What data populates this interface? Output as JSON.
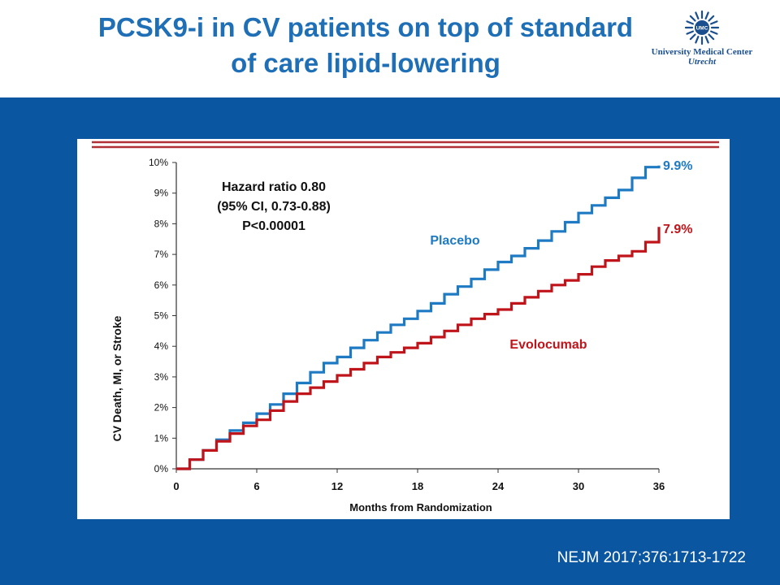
{
  "slide": {
    "title_line1": "PCSK9-i in CV patients on top of standard",
    "title_line2": "of care lipid-lowering",
    "citation": "NEJM 2017;376:1713-1722"
  },
  "logo": {
    "emblem_text": "UMC",
    "name": "University Medical Center",
    "city": "Utrecht"
  },
  "colors": {
    "title": "#1f6fb7",
    "band": "#0b56a1",
    "placebo": "#1e7ac2",
    "evolocumab": "#c0141b",
    "rule": "#b03035"
  },
  "chart_data": {
    "type": "line",
    "xlabel": "Months from Randomization",
    "ylabel": "CV Death, MI, or Stroke",
    "xlim": [
      0,
      36
    ],
    "ylim": [
      0,
      10
    ],
    "xticks": [
      "0",
      "6",
      "12",
      "18",
      "24",
      "30",
      "36"
    ],
    "yticks": [
      "0%",
      "1%",
      "2%",
      "3%",
      "4%",
      "5%",
      "6%",
      "7%",
      "8%",
      "9%",
      "10%"
    ],
    "annotation": {
      "line1": "Hazard ratio 0.80",
      "line2": "(95% CI, 0.73-0.88)",
      "line3": "P<0.00001"
    },
    "series": [
      {
        "name": "Placebo",
        "end_label": "9.9%",
        "x": [
          0,
          1,
          2,
          3,
          4,
          5,
          6,
          7,
          8,
          9,
          10,
          11,
          12,
          13,
          14,
          15,
          16,
          17,
          18,
          19,
          20,
          21,
          22,
          23,
          24,
          25,
          26,
          27,
          28,
          29,
          30,
          31,
          32,
          33,
          34,
          35,
          36
        ],
        "y": [
          0,
          0.3,
          0.6,
          0.95,
          1.25,
          1.5,
          1.8,
          2.1,
          2.45,
          2.8,
          3.15,
          3.45,
          3.65,
          3.95,
          4.2,
          4.45,
          4.7,
          4.9,
          5.15,
          5.4,
          5.7,
          5.95,
          6.2,
          6.5,
          6.75,
          6.95,
          7.2,
          7.45,
          7.75,
          8.05,
          8.35,
          8.6,
          8.85,
          9.1,
          9.5,
          9.85,
          9.9
        ]
      },
      {
        "name": "Evolocumab",
        "end_label": "7.9%",
        "x": [
          0,
          1,
          2,
          3,
          4,
          5,
          6,
          7,
          8,
          9,
          10,
          11,
          12,
          13,
          14,
          15,
          16,
          17,
          18,
          19,
          20,
          21,
          22,
          23,
          24,
          25,
          26,
          27,
          28,
          29,
          30,
          31,
          32,
          33,
          34,
          35,
          36
        ],
        "y": [
          0,
          0.3,
          0.6,
          0.9,
          1.15,
          1.4,
          1.6,
          1.9,
          2.2,
          2.45,
          2.65,
          2.85,
          3.05,
          3.25,
          3.45,
          3.65,
          3.8,
          3.95,
          4.1,
          4.3,
          4.5,
          4.7,
          4.9,
          5.05,
          5.2,
          5.4,
          5.6,
          5.8,
          6.0,
          6.15,
          6.35,
          6.6,
          6.8,
          6.95,
          7.1,
          7.4,
          7.9
        ]
      }
    ]
  }
}
